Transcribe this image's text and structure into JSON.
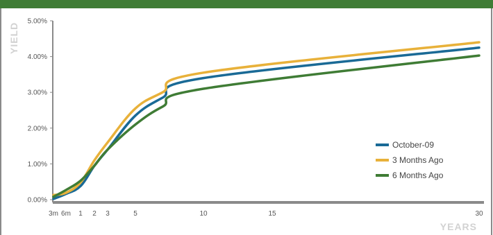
{
  "chart_data": {
    "type": "line",
    "xlabel": "YEARS",
    "ylabel": "YIELD",
    "xlim": [
      0.25,
      30
    ],
    "ylim": [
      0,
      5
    ],
    "x_ticks": [
      {
        "value": 0.25,
        "label": "3m"
      },
      {
        "value": 0.5,
        "label": "6m"
      },
      {
        "value": 1,
        "label": "1"
      },
      {
        "value": 2,
        "label": "2"
      },
      {
        "value": 3,
        "label": "3"
      },
      {
        "value": 5,
        "label": "5"
      },
      {
        "value": 10,
        "label": "10"
      },
      {
        "value": 15,
        "label": "15"
      },
      {
        "value": 30,
        "label": "30"
      }
    ],
    "y_ticks": [
      {
        "value": 0,
        "label": "0.00%"
      },
      {
        "value": 1,
        "label": "1.00%"
      },
      {
        "value": 2,
        "label": "2.00%"
      },
      {
        "value": 3,
        "label": "3.00%"
      },
      {
        "value": 4,
        "label": "4.00%"
      },
      {
        "value": 5,
        "label": "5.00%"
      }
    ],
    "legend_position": "right",
    "series": [
      {
        "name": "October-09",
        "color": "#1a6a96",
        "x": [
          0.25,
          0.5,
          1,
          2,
          3,
          5,
          7,
          10,
          30
        ],
        "y": [
          0.02,
          0.16,
          0.38,
          0.95,
          1.4,
          2.35,
          2.85,
          3.4,
          4.25
        ]
      },
      {
        "name": "3 Months Ago",
        "color": "#e8b13a",
        "x": [
          0.25,
          0.5,
          1,
          2,
          3,
          5,
          7,
          10,
          30
        ],
        "y": [
          0.13,
          0.19,
          0.48,
          1.1,
          1.6,
          2.55,
          3.0,
          3.55,
          4.4
        ]
      },
      {
        "name": "6 Months Ago",
        "color": "#3f7c35",
        "x": [
          0.25,
          0.5,
          1,
          2,
          3,
          5,
          7,
          10,
          30
        ],
        "y": [
          0.08,
          0.27,
          0.53,
          0.95,
          1.4,
          2.1,
          2.6,
          3.1,
          4.03
        ]
      }
    ]
  }
}
